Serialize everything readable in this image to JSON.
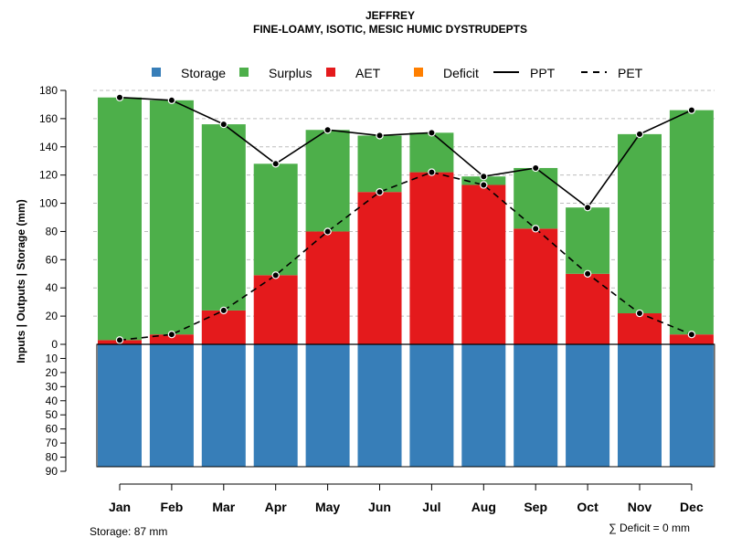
{
  "chart_data": {
    "type": "bar",
    "title": "JEFFREY",
    "subtitle": "FINE-LOAMY, ISOTIC, MESIC HUMIC DYSTRUDEPTS",
    "ylabel": "Inputs | Outputs | Storage    (mm)",
    "categories": [
      "Jan",
      "Feb",
      "Mar",
      "Apr",
      "May",
      "Jun",
      "Jul",
      "Aug",
      "Sep",
      "Oct",
      "Nov",
      "Dec"
    ],
    "upper_ylim": [
      0,
      180
    ],
    "upper_ticks": [
      "180",
      "160",
      "140",
      "120",
      "100",
      "80",
      "60",
      "40",
      "20",
      "0"
    ],
    "lower_ylim": [
      0,
      90
    ],
    "lower_ticks": [
      "10",
      "20",
      "30",
      "40",
      "50",
      "60",
      "70",
      "80",
      "90"
    ],
    "legend": {
      "position": "top",
      "items": [
        {
          "label": "Storage",
          "kind": "box",
          "color": "#377EB8"
        },
        {
          "label": "Surplus",
          "kind": "box",
          "color": "#4DAF4A"
        },
        {
          "label": "AET",
          "kind": "box",
          "color": "#E41A1C"
        },
        {
          "label": "Deficit",
          "kind": "box",
          "color": "#FF7F00"
        },
        {
          "label": "PPT",
          "kind": "solid-line",
          "color": "#000000"
        },
        {
          "label": "PET",
          "kind": "dashed-line",
          "color": "#000000"
        }
      ]
    },
    "series": [
      {
        "name": "AET",
        "color": "#E41A1C",
        "values": [
          3,
          7,
          24,
          49,
          80,
          108,
          122,
          113,
          82,
          50,
          22,
          7
        ]
      },
      {
        "name": "Surplus",
        "color": "#4DAF4A",
        "values": [
          172,
          166,
          132,
          79,
          72,
          40,
          28,
          6,
          43,
          47,
          127,
          159
        ]
      },
      {
        "name": "Deficit",
        "color": "#FF7F00",
        "values": [
          0,
          0,
          0,
          0,
          0,
          0,
          0,
          0,
          0,
          0,
          0,
          0
        ]
      },
      {
        "name": "Storage",
        "color": "#377EB8",
        "values": [
          87,
          87,
          87,
          87,
          87,
          87,
          87,
          87,
          87,
          87,
          87,
          87
        ]
      },
      {
        "name": "PPT",
        "color": "#000000",
        "style": "solid",
        "values": [
          175,
          173,
          156,
          128,
          152,
          148,
          150,
          119,
          125,
          97,
          149,
          166
        ]
      },
      {
        "name": "PET",
        "color": "#000000",
        "style": "dashed",
        "values": [
          3,
          7,
          24,
          49,
          80,
          108,
          122,
          113,
          82,
          50,
          22,
          7
        ]
      }
    ],
    "grid": true
  },
  "footer": {
    "storage_text": "Storage: 87 mm",
    "deficit_text": "∑ Deficit = 0 mm"
  }
}
